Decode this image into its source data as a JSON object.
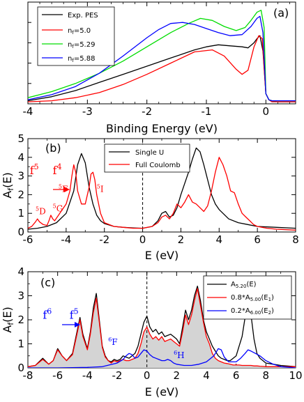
{
  "chart_data": [
    {
      "type": "line",
      "panel": "(a)",
      "xlabel": "Binding Energy (eV)",
      "ylabel": "",
      "xlim": [
        -4,
        0.5
      ],
      "ylim": [
        0,
        1.0
      ],
      "xticks": [
        -4,
        -3,
        -2,
        -1,
        0
      ],
      "xtick_labels": [
        "-4",
        "-3",
        "-2",
        "-1",
        "0"
      ],
      "legend": "top-left",
      "series": [
        {
          "name": "Exp. PES",
          "color": "#000000",
          "x": [
            -4.0,
            -3.6,
            -3.2,
            -2.8,
            -2.4,
            -2.0,
            -1.6,
            -1.2,
            -1.0,
            -0.8,
            -0.6,
            -0.4,
            -0.3,
            -0.2,
            -0.15,
            -0.1,
            -0.05,
            0.0,
            0.05,
            0.1,
            0.2,
            0.4,
            0.5
          ],
          "y": [
            0.03,
            0.07,
            0.13,
            0.21,
            0.29,
            0.37,
            0.45,
            0.53,
            0.56,
            0.58,
            0.57,
            0.56,
            0.55,
            0.6,
            0.64,
            0.67,
            0.52,
            0.1,
            0.04,
            0.03,
            0.02,
            0.02,
            0.02
          ]
        },
        {
          "name": "n_f=5.0",
          "color": "#ff0000",
          "x": [
            -4.0,
            -3.6,
            -3.2,
            -2.8,
            -2.4,
            -2.0,
            -1.6,
            -1.2,
            -0.9,
            -0.7,
            -0.5,
            -0.4,
            -0.3,
            -0.2,
            -0.12,
            -0.06,
            0.0,
            0.05,
            0.1,
            0.2,
            0.4,
            0.5
          ],
          "y": [
            0.02,
            0.03,
            0.06,
            0.11,
            0.19,
            0.29,
            0.4,
            0.51,
            0.53,
            0.47,
            0.34,
            0.29,
            0.33,
            0.56,
            0.67,
            0.64,
            0.1,
            0.04,
            0.02,
            0.02,
            0.02,
            0.02
          ]
        },
        {
          "name": "n_f=5.29",
          "color": "#00dd00",
          "x": [
            -4.0,
            -3.6,
            -3.2,
            -2.8,
            -2.4,
            -2.0,
            -1.6,
            -1.3,
            -1.1,
            -0.9,
            -0.7,
            -0.5,
            -0.35,
            -0.25,
            -0.15,
            -0.08,
            -0.03,
            0.0,
            0.05,
            0.1,
            0.2,
            0.4,
            0.5
          ],
          "y": [
            0.06,
            0.12,
            0.2,
            0.3,
            0.42,
            0.56,
            0.7,
            0.79,
            0.84,
            0.82,
            0.76,
            0.72,
            0.75,
            0.82,
            0.9,
            0.92,
            0.75,
            0.1,
            0.04,
            0.03,
            0.03,
            0.03,
            0.03
          ]
        },
        {
          "name": "n_f=5.88",
          "color": "#0000ff",
          "x": [
            -4.0,
            -3.6,
            -3.2,
            -2.8,
            -2.4,
            -2.0,
            -1.8,
            -1.6,
            -1.4,
            -1.2,
            -1.0,
            -0.8,
            -0.6,
            -0.4,
            -0.25,
            -0.15,
            -0.1,
            -0.05,
            0.0,
            0.05,
            0.1,
            0.2,
            0.4,
            0.5
          ],
          "y": [
            0.04,
            0.09,
            0.17,
            0.3,
            0.47,
            0.65,
            0.73,
            0.79,
            0.8,
            0.78,
            0.74,
            0.7,
            0.67,
            0.68,
            0.76,
            0.84,
            0.86,
            0.7,
            0.1,
            0.04,
            0.03,
            0.03,
            0.03,
            0.03
          ]
        }
      ]
    },
    {
      "type": "line",
      "panel": "(b)",
      "xlabel": "E (eV)",
      "ylabel": "A_f(E)",
      "xlim": [
        -6,
        8
      ],
      "ylim": [
        0,
        5
      ],
      "xticks": [
        -6,
        -4,
        -2,
        0,
        2,
        4,
        6,
        8
      ],
      "xtick_labels": [
        "-6",
        "-4",
        "-2",
        "0",
        "2",
        "4",
        "6",
        "8"
      ],
      "yticks": [
        0,
        1,
        2,
        3,
        4,
        5
      ],
      "ytick_labels": [
        "0",
        "1",
        "2",
        "3",
        "4",
        "5"
      ],
      "legend": "top-center",
      "annotations": [
        {
          "base": "f",
          "sup": "5",
          "x": -5.9,
          "y": 3.1,
          "color": "#ff0000"
        },
        {
          "base": "f",
          "sup": "4",
          "x": -4.7,
          "y": 3.1,
          "color": "#ff0000"
        },
        {
          "pre": "5",
          "base": "F",
          "x": -4.4,
          "y": 2.15,
          "color": "#ff0000"
        },
        {
          "pre": "5",
          "base": "I",
          "x": -2.4,
          "y": 2.15,
          "color": "#ff0000"
        },
        {
          "pre": "5",
          "base": "D",
          "x": -5.6,
          "y": 0.95,
          "color": "#ff0000"
        },
        {
          "pre": "5",
          "base": "G",
          "x": -4.7,
          "y": 1.1,
          "color": "#ff0000"
        }
      ],
      "series": [
        {
          "name": "Single U",
          "color": "#000000",
          "x": [
            -6.0,
            -5.5,
            -5.0,
            -4.5,
            -4.0,
            -3.6,
            -3.4,
            -3.2,
            -3.0,
            -2.8,
            -2.6,
            -2.4,
            -2.2,
            -2.0,
            -1.5,
            -1.0,
            -0.5,
            0.0,
            0.5,
            0.8,
            1.0,
            1.2,
            1.4,
            1.6,
            1.8,
            2.0,
            2.2,
            2.4,
            2.6,
            2.8,
            3.0,
            3.2,
            3.4,
            3.6,
            3.8,
            4.0,
            4.5,
            5.0,
            5.5,
            6.0,
            7.0,
            8.0
          ],
          "y": [
            0.15,
            0.2,
            0.3,
            0.5,
            1.0,
            2.2,
            3.6,
            4.2,
            3.7,
            2.4,
            1.5,
            0.9,
            0.6,
            0.45,
            0.3,
            0.25,
            0.22,
            0.2,
            0.3,
            0.6,
            1.0,
            1.1,
            0.8,
            0.9,
            1.3,
            2.0,
            2.6,
            3.2,
            3.9,
            4.5,
            4.3,
            3.6,
            2.8,
            2.0,
            1.5,
            1.2,
            0.7,
            0.5,
            0.4,
            0.3,
            0.25,
            0.2
          ]
        },
        {
          "name": "Full Coulomb",
          "color": "#ff0000",
          "x": [
            -6.0,
            -5.8,
            -5.6,
            -5.5,
            -5.4,
            -5.2,
            -5.0,
            -4.9,
            -4.8,
            -4.7,
            -4.6,
            -4.4,
            -4.2,
            -4.0,
            -3.8,
            -3.7,
            -3.6,
            -3.5,
            -3.4,
            -3.2,
            -3.0,
            -2.8,
            -2.7,
            -2.6,
            -2.5,
            -2.4,
            -2.2,
            -2.0,
            -1.5,
            -1.0,
            -0.5,
            0.0,
            0.5,
            0.8,
            1.0,
            1.2,
            1.4,
            1.6,
            1.8,
            2.0,
            2.2,
            2.4,
            2.6,
            2.8,
            3.0,
            3.2,
            3.4,
            3.6,
            3.8,
            4.0,
            4.2,
            4.4,
            4.6,
            4.8,
            5.0,
            5.2,
            5.4,
            5.6,
            5.8,
            6.0,
            6.5,
            7.0,
            8.0
          ],
          "y": [
            0.2,
            0.3,
            0.55,
            0.7,
            0.55,
            0.4,
            0.35,
            0.6,
            0.9,
            0.7,
            0.6,
            0.9,
            1.2,
            1.5,
            2.2,
            3.0,
            3.6,
            3.2,
            2.2,
            1.5,
            1.5,
            2.4,
            3.1,
            3.2,
            2.8,
            2.0,
            1.0,
            0.5,
            0.3,
            0.25,
            0.2,
            0.2,
            0.3,
            0.5,
            0.8,
            0.9,
            0.7,
            1.0,
            1.5,
            1.3,
            1.6,
            2.0,
            1.6,
            1.5,
            1.3,
            1.1,
            1.4,
            2.2,
            3.2,
            4.0,
            3.6,
            3.0,
            2.2,
            2.1,
            1.5,
            1.0,
            0.8,
            0.6,
            0.4,
            0.3,
            0.2,
            0.15,
            0.1
          ]
        }
      ]
    },
    {
      "type": "line",
      "panel": "(c)",
      "xlabel": "E (eV)",
      "ylabel": "A_f(E)",
      "xlim": [
        -8,
        10
      ],
      "ylim": [
        0,
        4
      ],
      "xticks": [
        -8,
        -6,
        -4,
        -2,
        0,
        2,
        4,
        6,
        8,
        10
      ],
      "xtick_labels": [
        "-8",
        "-6",
        "-4",
        "-2",
        "0",
        "2",
        "4",
        "6",
        "8",
        "10"
      ],
      "yticks": [
        0,
        1,
        2,
        3,
        4
      ],
      "ytick_labels": [
        "0",
        "1",
        "2",
        "3",
        "4"
      ],
      "legend": "top-right",
      "annotations": [
        {
          "base": "f",
          "sup": "6",
          "x": -7.0,
          "y": 2.05,
          "color": "#0000ff"
        },
        {
          "base": "f",
          "sup": "5",
          "x": -5.2,
          "y": 2.05,
          "color": "#0000ff"
        },
        {
          "pre": "6",
          "base": "F",
          "x": -2.6,
          "y": 0.95,
          "color": "#0000ff"
        },
        {
          "pre": "6",
          "base": "H",
          "x": 1.8,
          "y": 0.4,
          "color": "#0000ff"
        }
      ],
      "series": [
        {
          "name": "A_5.20(E)",
          "color": "#000000",
          "x": [
            -8.0,
            -7.5,
            -7.0,
            -6.6,
            -6.3,
            -6.0,
            -5.7,
            -5.4,
            -5.0,
            -4.7,
            -4.5,
            -4.3,
            -4.0,
            -3.8,
            -3.6,
            -3.4,
            -3.2,
            -3.0,
            -2.8,
            -2.6,
            -2.4,
            -2.2,
            -2.0,
            -1.8,
            -1.6,
            -1.4,
            -1.2,
            -1.0,
            -0.8,
            -0.6,
            -0.4,
            -0.2,
            0.0,
            0.2,
            0.4,
            0.6,
            0.8,
            1.0,
            1.2,
            1.4,
            1.6,
            1.8,
            2.0,
            2.2,
            2.4,
            2.6,
            2.8,
            3.0,
            3.2,
            3.4,
            3.6,
            3.8,
            4.0,
            4.2,
            4.4,
            4.6,
            4.8,
            5.0,
            5.2,
            5.4,
            5.6,
            5.8,
            6.0,
            6.2,
            6.4,
            6.6,
            6.8,
            7.0,
            7.2,
            7.4,
            7.6,
            7.8,
            8.0,
            8.5,
            9.0,
            10.0
          ],
          "y": [
            0.05,
            0.1,
            0.4,
            0.15,
            0.3,
            0.8,
            0.5,
            0.3,
            0.6,
            1.5,
            2.1,
            1.4,
            0.8,
            1.5,
            2.5,
            3.1,
            2.0,
            0.9,
            0.5,
            0.3,
            0.25,
            0.35,
            0.3,
            0.35,
            0.5,
            0.45,
            0.4,
            0.5,
            0.6,
            0.9,
            1.4,
            1.9,
            2.15,
            1.7,
            1.5,
            1.6,
            1.4,
            1.5,
            1.3,
            1.35,
            1.4,
            1.3,
            1.2,
            1.0,
            1.7,
            2.4,
            2.0,
            2.4,
            3.0,
            3.4,
            2.8,
            2.0,
            1.5,
            1.2,
            0.9,
            0.7,
            0.5,
            0.4,
            0.35,
            0.3,
            0.3,
            0.4,
            0.5,
            0.9,
            1.3,
            2.1,
            2.7,
            2.2,
            1.2,
            0.6,
            0.4,
            0.3,
            0.2,
            0.15,
            0.1,
            0.05
          ]
        },
        {
          "name": "0.8*A_5.00(E_1)",
          "color": "#ff0000",
          "x": [
            -8.0,
            -7.5,
            -7.0,
            -6.6,
            -6.3,
            -6.0,
            -5.7,
            -5.4,
            -5.0,
            -4.7,
            -4.5,
            -4.3,
            -4.0,
            -3.8,
            -3.6,
            -3.4,
            -3.2,
            -3.0,
            -2.8,
            -2.6,
            -2.4,
            -2.2,
            -2.0,
            -1.8,
            -1.6,
            -1.4,
            -1.2,
            -1.0,
            -0.8,
            -0.6,
            -0.4,
            -0.2,
            0.0,
            0.2,
            0.4,
            0.6,
            0.8,
            1.0,
            1.2,
            1.4,
            1.6,
            1.8,
            2.0,
            2.2,
            2.4,
            2.6,
            2.8,
            3.0,
            3.2,
            3.4,
            3.6,
            3.8,
            4.0,
            4.2,
            4.4,
            4.6,
            4.8,
            5.0,
            5.2,
            5.4,
            5.6,
            5.8,
            6.0,
            6.2,
            6.4,
            6.6,
            6.8,
            7.0,
            7.2,
            7.4,
            7.6,
            7.8,
            8.0,
            8.5,
            9.0,
            10.0
          ],
          "y": [
            0.05,
            0.1,
            0.35,
            0.15,
            0.3,
            0.75,
            0.5,
            0.3,
            0.55,
            1.4,
            2.0,
            1.3,
            0.75,
            1.4,
            2.3,
            2.9,
            1.9,
            0.85,
            0.45,
            0.3,
            0.2,
            0.3,
            0.25,
            0.3,
            0.35,
            0.3,
            0.3,
            0.35,
            0.4,
            0.6,
            1.0,
            1.5,
            1.7,
            1.4,
            1.2,
            1.3,
            1.15,
            1.3,
            1.1,
            1.15,
            1.2,
            1.1,
            1.0,
            0.9,
            1.5,
            2.2,
            1.8,
            2.2,
            2.8,
            3.3,
            2.6,
            1.9,
            1.3,
            1.0,
            0.6,
            0.4,
            0.3,
            0.25,
            0.2,
            0.18,
            0.15,
            0.12,
            0.12,
            0.12,
            0.1,
            0.1,
            0.1,
            0.1,
            0.08,
            0.08,
            0.07,
            0.06,
            0.05,
            0.05,
            0.05,
            0.05
          ]
        },
        {
          "name": "0.2*A_6.00(E_2)",
          "color": "#0000ff",
          "x": [
            -8.0,
            -6.0,
            -4.0,
            -3.0,
            -2.0,
            -1.6,
            -1.4,
            -1.2,
            -1.0,
            -0.8,
            -0.6,
            -0.4,
            -0.2,
            0.0,
            0.2,
            0.4,
            0.6,
            0.8,
            1.0,
            1.2,
            1.4,
            1.6,
            1.8,
            2.0,
            2.5,
            3.0,
            3.5,
            4.0,
            4.5,
            4.8,
            5.0,
            5.2,
            5.5,
            6.0,
            6.3,
            6.6,
            6.8,
            7.0,
            7.3,
            7.6,
            7.8,
            8.0,
            8.5,
            9.0,
            10.0
          ],
          "y": [
            0.0,
            0.0,
            0.02,
            0.05,
            0.2,
            0.35,
            0.5,
            0.6,
            0.55,
            0.4,
            0.45,
            0.6,
            0.75,
            0.7,
            0.55,
            0.45,
            0.4,
            0.35,
            0.3,
            0.3,
            0.35,
            0.3,
            0.2,
            0.15,
            0.1,
            0.1,
            0.15,
            0.25,
            0.5,
            0.8,
            0.75,
            0.45,
            0.25,
            0.25,
            0.4,
            0.6,
            0.75,
            0.7,
            0.6,
            0.5,
            0.4,
            0.3,
            0.15,
            0.05,
            0.0
          ]
        }
      ]
    }
  ],
  "legend_labels": {
    "a": {
      "exp": "Exp. PES",
      "nf1_base": "n",
      "nf1_sub": "f",
      "nf1_val": "=5.0",
      "nf2_base": "n",
      "nf2_sub": "f",
      "nf2_val": "=5.29",
      "nf3_base": "n",
      "nf3_sub": "f",
      "nf3_val": "=5.88"
    },
    "b": {
      "single": "Single U",
      "full": "Full Coulomb"
    },
    "c": {
      "l1_base": "A",
      "l1_sub": "5.20",
      "l1_rest": "(E)",
      "l2_pre": "0.8*A",
      "l2_sub": "5.00",
      "l2_rest": "(E",
      "l2_rsub": "1",
      "l2_close": ")",
      "l3_pre": "0.2*A",
      "l3_sub": "6.00",
      "l3_rest": "(E",
      "l3_rsub": "2",
      "l3_close": ")"
    }
  },
  "ylabel_parts": {
    "base": "A",
    "sub": "f",
    "rest": "(E)"
  }
}
